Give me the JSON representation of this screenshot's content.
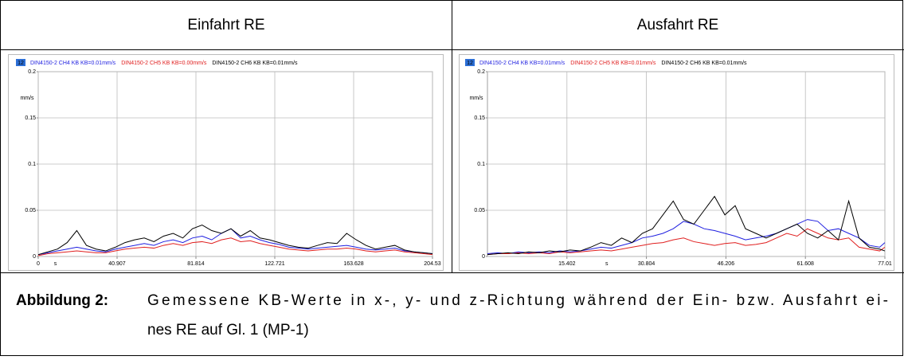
{
  "table": {
    "headers": [
      "Einfahrt RE",
      "Ausfahrt RE"
    ]
  },
  "caption": {
    "label": "Abbildung 2:",
    "lines": [
      "Gemessene KB-Werte in x-, y- und z-Richtung während der Ein- bzw. Ausfahrt ei-",
      "nes RE auf Gl. 1 (MP-1)"
    ]
  },
  "chart_data": [
    {
      "type": "line",
      "badge": "12",
      "x_label": "s",
      "y_label": "mm/s",
      "grid": true,
      "xlim": [
        0,
        204.53
      ],
      "xticks": [
        0,
        40.907,
        81.814,
        122.721,
        163.628,
        204.53
      ],
      "ylim": [
        0,
        0.2
      ],
      "yticks": [
        0,
        0.05,
        0.1,
        0.15,
        0.2
      ],
      "x": [
        0,
        5,
        10,
        15,
        20,
        25,
        30,
        35,
        40,
        45,
        50,
        55,
        60,
        65,
        70,
        75,
        80,
        85,
        90,
        95,
        100,
        105,
        110,
        115,
        120,
        125,
        130,
        135,
        140,
        145,
        150,
        155,
        160,
        165,
        170,
        175,
        180,
        185,
        190,
        195,
        200,
        204.5
      ],
      "series": [
        {
          "name": "DIN4150-2 CH4 KB KB=0.01mm/s",
          "color": "#1f1fe0",
          "values": [
            0.002,
            0.004,
            0.006,
            0.008,
            0.01,
            0.008,
            0.006,
            0.005,
            0.008,
            0.01,
            0.012,
            0.014,
            0.012,
            0.016,
            0.018,
            0.015,
            0.02,
            0.022,
            0.018,
            0.025,
            0.03,
            0.02,
            0.022,
            0.018,
            0.015,
            0.013,
            0.01,
            0.009,
            0.008,
            0.009,
            0.01,
            0.011,
            0.012,
            0.01,
            0.008,
            0.007,
            0.008,
            0.009,
            0.006,
            0.005,
            0.004,
            0.003
          ]
        },
        {
          "name": "DIN4150-2 CH5 KB KB=0.00mm/s",
          "color": "#e01f1f",
          "values": [
            0.001,
            0.003,
            0.004,
            0.005,
            0.006,
            0.005,
            0.004,
            0.004,
            0.006,
            0.008,
            0.009,
            0.01,
            0.009,
            0.012,
            0.014,
            0.012,
            0.015,
            0.016,
            0.014,
            0.018,
            0.02,
            0.016,
            0.017,
            0.014,
            0.012,
            0.01,
            0.008,
            0.007,
            0.006,
            0.007,
            0.008,
            0.008,
            0.009,
            0.008,
            0.006,
            0.005,
            0.006,
            0.007,
            0.005,
            0.004,
            0.003,
            0.002
          ]
        },
        {
          "name": "DIN4150-2 CH6 KB KB=0.01mm/s",
          "color": "#000000",
          "values": [
            0.002,
            0.005,
            0.008,
            0.015,
            0.028,
            0.012,
            0.008,
            0.006,
            0.01,
            0.015,
            0.018,
            0.02,
            0.016,
            0.022,
            0.025,
            0.02,
            0.03,
            0.034,
            0.028,
            0.025,
            0.03,
            0.022,
            0.028,
            0.02,
            0.018,
            0.015,
            0.012,
            0.01,
            0.009,
            0.012,
            0.015,
            0.014,
            0.025,
            0.018,
            0.012,
            0.008,
            0.01,
            0.012,
            0.007,
            0.005,
            0.004,
            0.003
          ]
        }
      ]
    },
    {
      "type": "line",
      "badge": "12",
      "x_label": "s",
      "y_label": "mm/s",
      "grid": true,
      "xlim": [
        0,
        77.01
      ],
      "xticks": [
        15.402,
        30.804,
        46.206,
        61.608,
        77.01
      ],
      "ylim": [
        0,
        0.2
      ],
      "yticks": [
        0,
        0.05,
        0.1,
        0.15,
        0.2
      ],
      "x": [
        0,
        2,
        4,
        6,
        8,
        10,
        12,
        14,
        16,
        18,
        20,
        22,
        24,
        26,
        28,
        30,
        32,
        34,
        36,
        38,
        40,
        42,
        44,
        46,
        48,
        50,
        52,
        54,
        56,
        58,
        60,
        62,
        64,
        66,
        68,
        70,
        72,
        74,
        76,
        77
      ],
      "series": [
        {
          "name": "DIN4150-2 CH4 KB KB=0.01mm/s",
          "color": "#1f1fe0",
          "values": [
            0.003,
            0.004,
            0.003,
            0.005,
            0.004,
            0.005,
            0.004,
            0.006,
            0.005,
            0.006,
            0.008,
            0.01,
            0.009,
            0.012,
            0.015,
            0.02,
            0.022,
            0.025,
            0.03,
            0.038,
            0.035,
            0.03,
            0.028,
            0.025,
            0.022,
            0.018,
            0.02,
            0.022,
            0.025,
            0.03,
            0.035,
            0.04,
            0.038,
            0.028,
            0.03,
            0.025,
            0.02,
            0.012,
            0.01,
            0.015
          ]
        },
        {
          "name": "DIN4150-2 CH5 KB KB=0.01mm/s",
          "color": "#e01f1f",
          "values": [
            0.002,
            0.003,
            0.003,
            0.004,
            0.003,
            0.004,
            0.003,
            0.005,
            0.004,
            0.005,
            0.006,
            0.007,
            0.006,
            0.008,
            0.01,
            0.012,
            0.014,
            0.015,
            0.018,
            0.02,
            0.016,
            0.014,
            0.012,
            0.014,
            0.015,
            0.012,
            0.013,
            0.015,
            0.02,
            0.025,
            0.022,
            0.03,
            0.025,
            0.02,
            0.018,
            0.02,
            0.01,
            0.008,
            0.006,
            0.01
          ]
        },
        {
          "name": "DIN4150-2 CH6 KB KB=0.01mm/s",
          "color": "#000000",
          "values": [
            0.002,
            0.003,
            0.004,
            0.003,
            0.005,
            0.004,
            0.006,
            0.005,
            0.007,
            0.006,
            0.01,
            0.015,
            0.012,
            0.02,
            0.015,
            0.025,
            0.03,
            0.045,
            0.06,
            0.04,
            0.035,
            0.05,
            0.065,
            0.045,
            0.055,
            0.03,
            0.025,
            0.02,
            0.025,
            0.03,
            0.035,
            0.025,
            0.02,
            0.028,
            0.018,
            0.06,
            0.02,
            0.01,
            0.008,
            0.006
          ]
        }
      ]
    }
  ]
}
